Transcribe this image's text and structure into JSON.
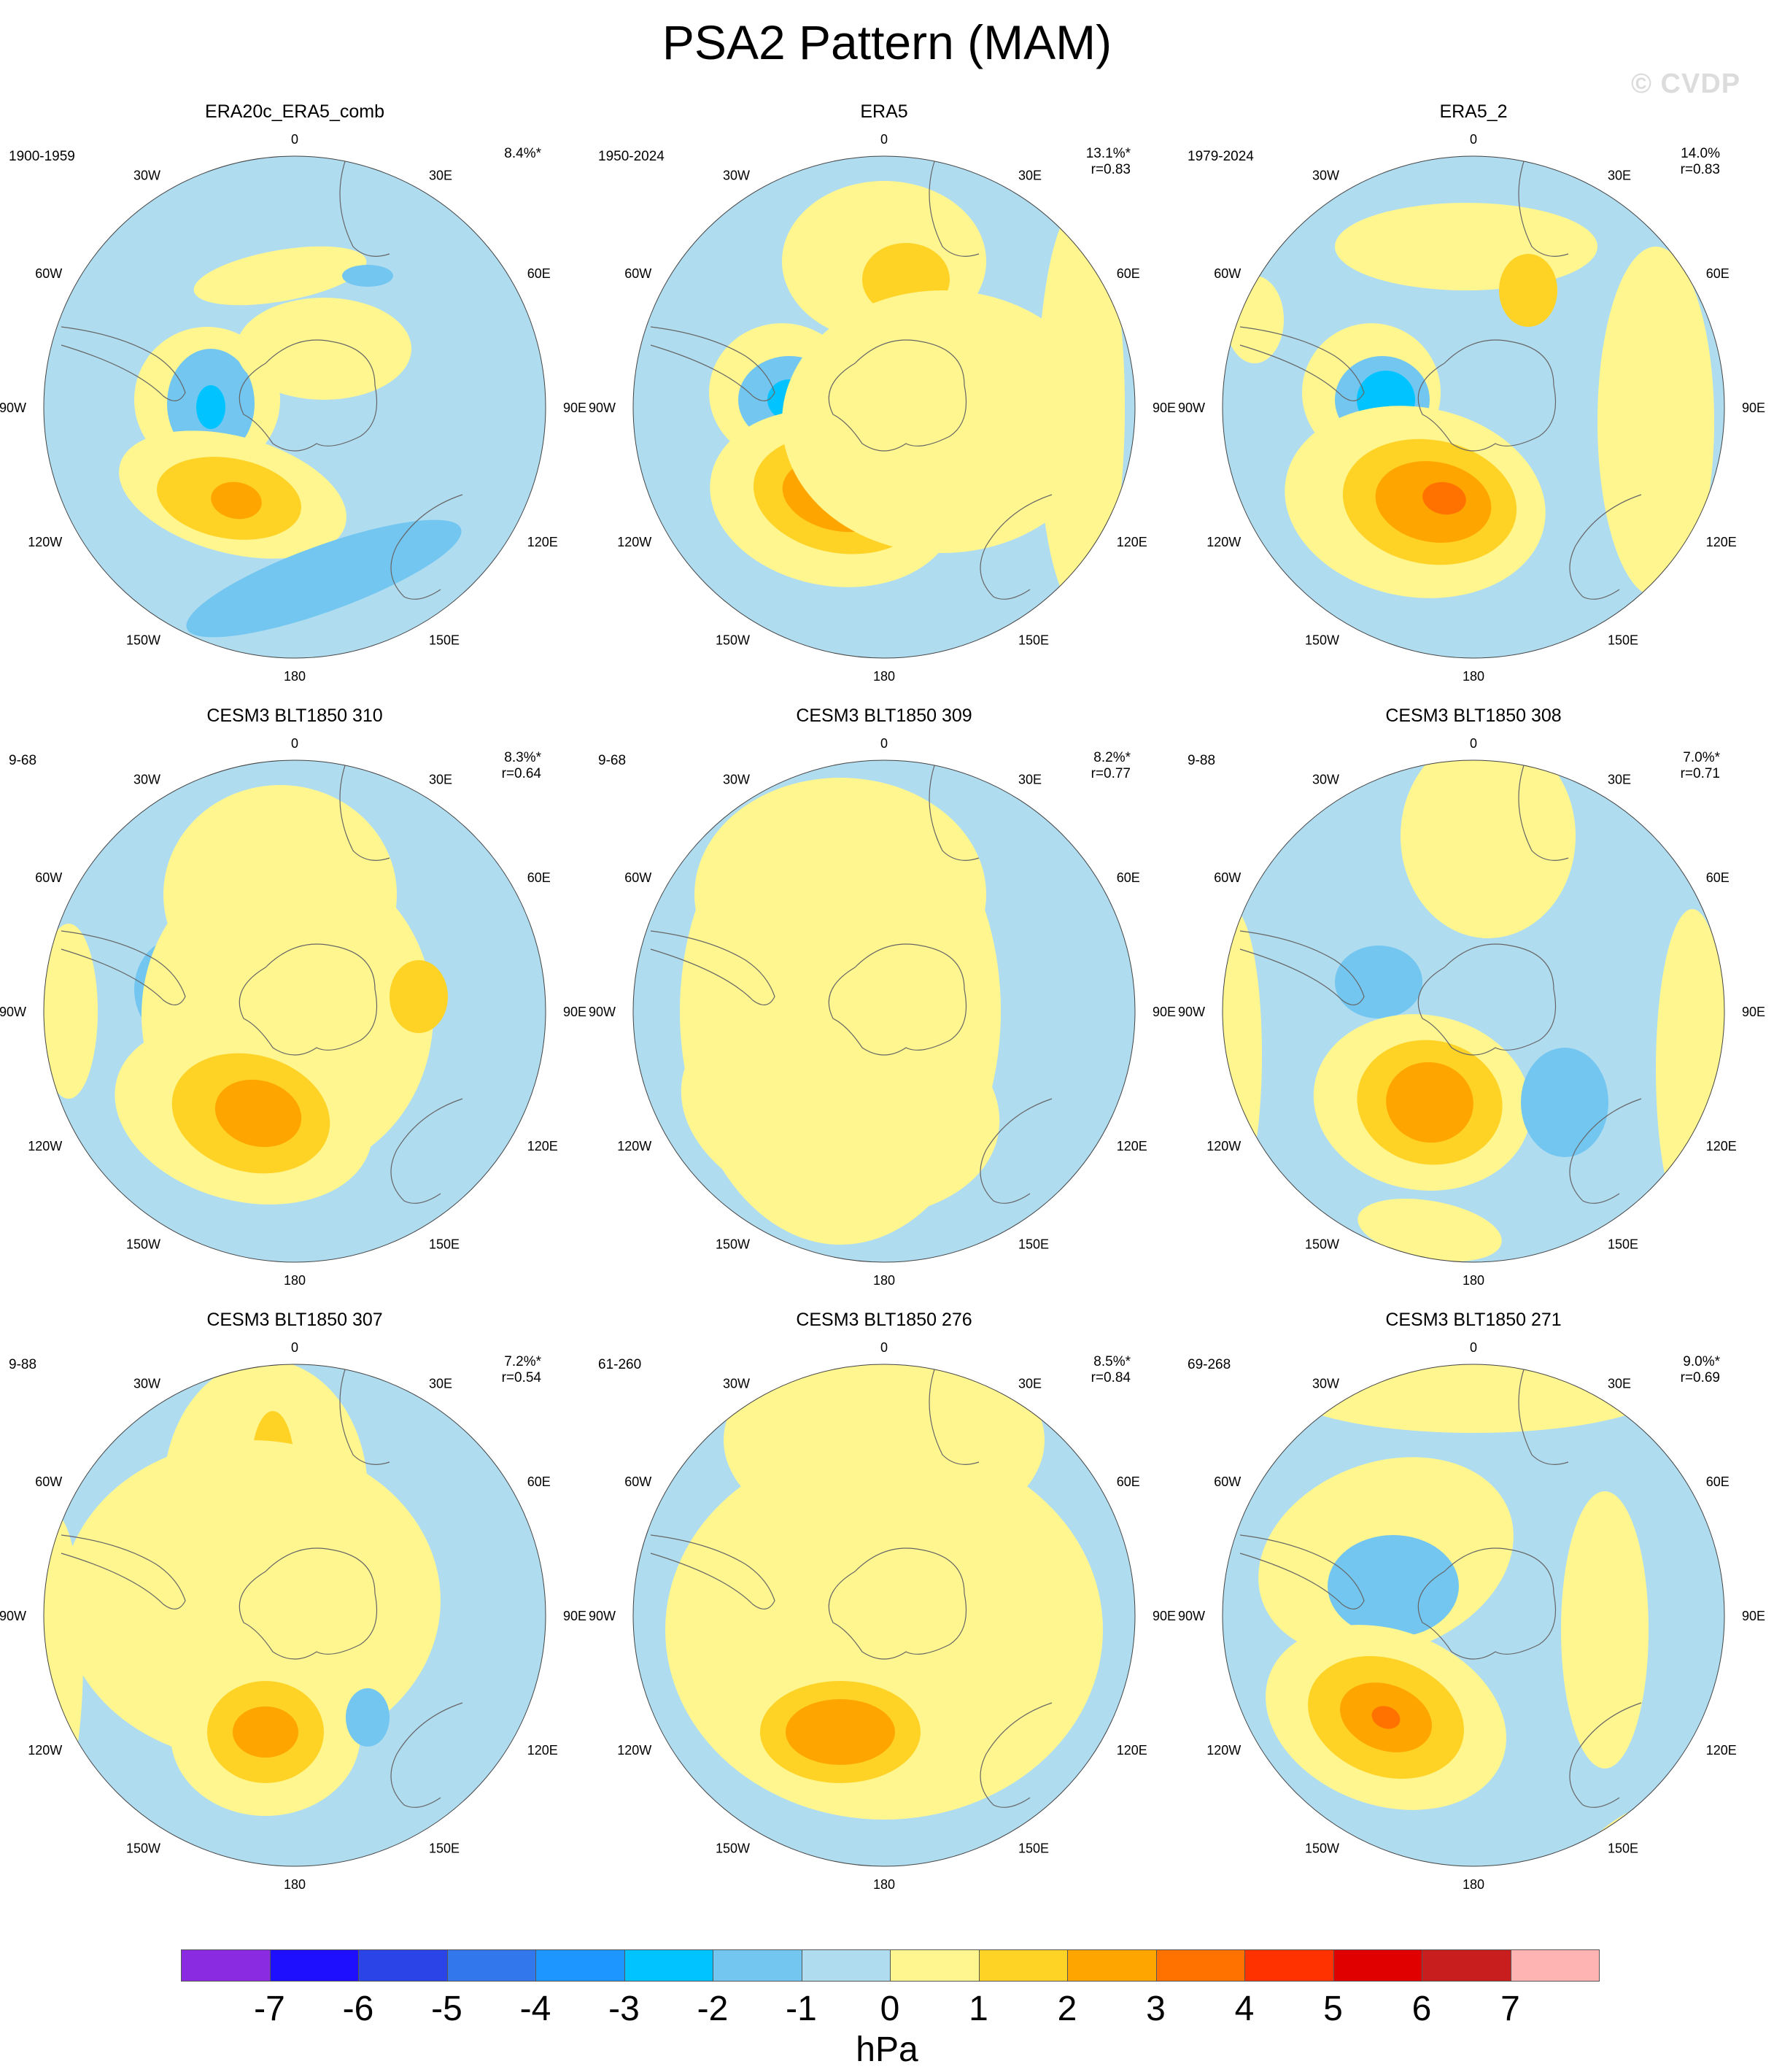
{
  "figure": {
    "title": "PSA2 Pattern (MAM)",
    "watermark": "© CVDP",
    "longitude_labels": [
      "0",
      "30E",
      "60E",
      "90E",
      "120E",
      "150E",
      "180",
      "150W",
      "120W",
      "90W",
      "60W",
      "30W"
    ]
  },
  "panels": [
    {
      "title": "ERA20c_ERA5_comb",
      "period": "1900-1959",
      "pct": "8.4%*",
      "corr": ""
    },
    {
      "title": "ERA5",
      "period": "1950-2024",
      "pct": "13.1%*",
      "corr": "r=0.83"
    },
    {
      "title": "ERA5_2",
      "period": "1979-2024",
      "pct": "14.0%",
      "corr": "r=0.83"
    },
    {
      "title": "CESM3 BLT1850 310",
      "period": "9-68",
      "pct": "8.3%*",
      "corr": "r=0.64"
    },
    {
      "title": "CESM3 BLT1850 309",
      "period": "9-68",
      "pct": "8.2%*",
      "corr": "r=0.77"
    },
    {
      "title": "CESM3 BLT1850 308",
      "period": "9-88",
      "pct": "7.0%*",
      "corr": "r=0.71"
    },
    {
      "title": "CESM3 BLT1850 307",
      "period": "9-88",
      "pct": "7.2%*",
      "corr": "r=0.54"
    },
    {
      "title": "CESM3 BLT1850 276",
      "period": "61-260",
      "pct": "8.5%*",
      "corr": "r=0.84"
    },
    {
      "title": "CESM3 BLT1850 271",
      "period": "69-268",
      "pct": "9.0%*",
      "corr": "r=0.69"
    }
  ],
  "colorbar": {
    "unit": "hPa",
    "ticks": [
      "-7",
      "-6",
      "-5",
      "-4",
      "-3",
      "-2",
      "-1",
      "0",
      "1",
      "2",
      "3",
      "4",
      "5",
      "6",
      "7"
    ],
    "colors": [
      "#8a2be2",
      "#1e10ff",
      "#2a44e8",
      "#3278ec",
      "#1e96ff",
      "#00c3ff",
      "#73c6f0",
      "#b0dcf0",
      "#fff690",
      "#ffd226",
      "#ffa500",
      "#ff7200",
      "#ff3200",
      "#e00000",
      "#c81e1e",
      "#ffb4b4"
    ]
  }
}
